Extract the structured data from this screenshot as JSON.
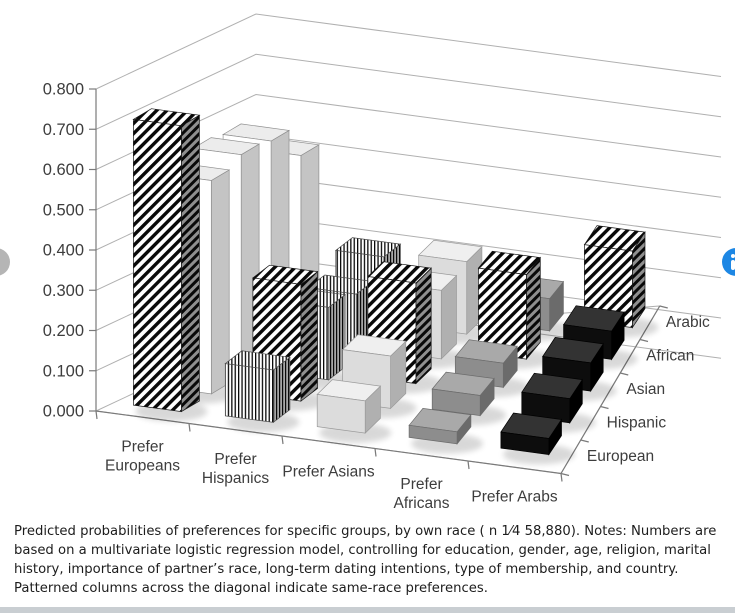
{
  "page": {
    "background": "#ffffff"
  },
  "chart_data": {
    "type": "bar",
    "projection": "3d",
    "title": "",
    "xlabel": "",
    "ylabel": "",
    "categories": [
      "Prefer Europeans",
      "Prefer Hispanics",
      "Prefer Asians",
      "Prefer Africans",
      "Prefer Arabs"
    ],
    "category_label_lines": [
      [
        "Prefer",
        "Europeans"
      ],
      [
        "Prefer",
        "Hispanics"
      ],
      [
        "Prefer Asians"
      ],
      [
        "Prefer",
        "Africans"
      ],
      [
        "Prefer Arabs"
      ]
    ],
    "series": [
      {
        "name": "European",
        "values": [
          0.71,
          0.13,
          0.08,
          0.03,
          0.04
        ]
      },
      {
        "name": "Hispanic",
        "values": [
          0.53,
          0.29,
          0.13,
          0.05,
          0.06
        ]
      },
      {
        "name": "Asian",
        "values": [
          0.55,
          0.18,
          0.25,
          0.06,
          0.07
        ]
      },
      {
        "name": "African",
        "values": [
          0.54,
          0.16,
          0.17,
          0.21,
          0.07
        ]
      },
      {
        "name": "Arabic",
        "values": [
          0.46,
          0.2,
          0.18,
          0.08,
          0.19
        ]
      }
    ],
    "value_axis": {
      "min": 0.0,
      "max": 0.8,
      "step": 0.1,
      "ticks": [
        "0.000",
        "0.100",
        "0.200",
        "0.300",
        "0.400",
        "0.500",
        "0.600",
        "0.700",
        "0.800"
      ]
    },
    "grid": true,
    "legend_position": "depth-axis-right",
    "column_fills": [
      {
        "category": "Prefer Europeans",
        "fill": "white"
      },
      {
        "category": "Prefer Hispanics",
        "fill": "vertical-stripes"
      },
      {
        "category": "Prefer Asians",
        "fill": "light-gray"
      },
      {
        "category": "Prefer Africans",
        "fill": "medium-gray"
      },
      {
        "category": "Prefer Arabs",
        "fill": "black"
      }
    ],
    "diagonal_fill": "diagonal-stripes",
    "colors": {
      "bar_white": "#ffffff",
      "bar_light": "#dcdcdc",
      "bar_medium": "#8d8d8d",
      "bar_black": "#0d0d0d",
      "gridline": "#b0b0b0",
      "axis": "#7a7a7a",
      "label": "#3d3d3d"
    }
  },
  "caption": {
    "lines": [
      "Predicted probabilities of preferences for specific groups, by own race ( n 1⁄4 58,880). Notes: Numbers are",
      "based on a multivariate logistic regression model, controlling for education, gender, age, religion, marital history,",
      "importance of partner’s race, long-term dating intentions, type of membership, and country. Patterned columns",
      "across the diagonal indicate same-race preferences."
    ]
  },
  "carousel": {
    "prev_color": "#b5b5b5",
    "next_color": "#1d87e4"
  }
}
